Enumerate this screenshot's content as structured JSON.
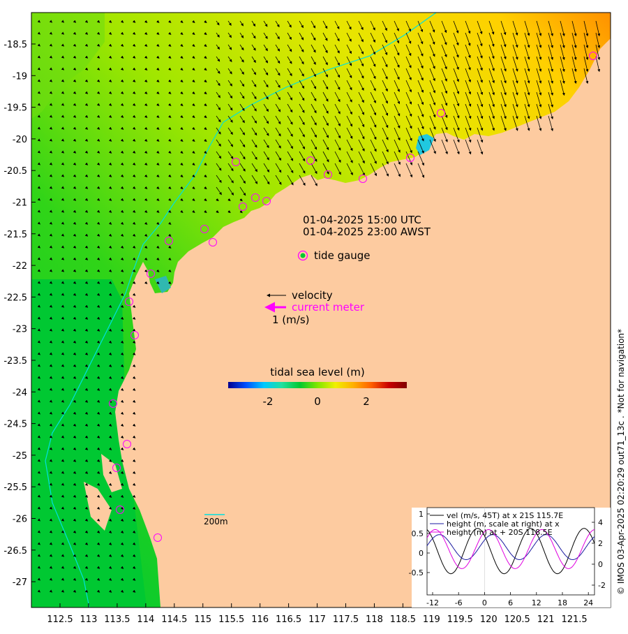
{
  "timestamps": {
    "utc": "01-04-2025 15:00 UTC",
    "local": "01-04-2025 23:00 AWST"
  },
  "legend": {
    "tide_gauge": "tide gauge",
    "velocity": "velocity",
    "current_meter": "current meter",
    "speed_scale": "1 (m/s)"
  },
  "colorbar": {
    "title": "tidal sea level (m)",
    "ticks": [
      "-2",
      "0",
      "2"
    ],
    "colors": [
      "#00008f",
      "#0050ff",
      "#00c8ff",
      "#20e0a0",
      "#00c832",
      "#80e600",
      "#f0f000",
      "#ffb000",
      "#ff6000",
      "#c80000",
      "#800000"
    ]
  },
  "scale_bar": {
    "label": "200m"
  },
  "axes": {
    "x_ticks": [
      "112.5",
      "113",
      "113.5",
      "114",
      "114.5",
      "115",
      "115.5",
      "116",
      "116.5",
      "117",
      "117.5",
      "118",
      "118.5",
      "119",
      "119.5",
      "120",
      "120.5",
      "121",
      "121.5"
    ],
    "y_ticks": [
      "-18.5",
      "-19",
      "-19.5",
      "-20",
      "-20.5",
      "-21",
      "-21.5",
      "-22",
      "-22.5",
      "-23",
      "-23.5",
      "-24",
      "-24.5",
      "-25",
      "-25.5",
      "-26",
      "-26.5",
      "-27"
    ]
  },
  "inset": {
    "legend": [
      "vel (m/s, 45T) at x 21S 115.7E",
      "height (m, scale at right) at x",
      "height (m) at + 20S 118.5E"
    ],
    "left_ticks": [
      "1",
      "0.5",
      "0",
      "-0.5"
    ],
    "right_ticks": [
      "4",
      "2",
      "0",
      "-2"
    ],
    "x_ticks": [
      "-12",
      "-6",
      "0",
      "6",
      "12",
      "18",
      "24"
    ],
    "series_colors": [
      "#000000",
      "#1a1aa0",
      "#e000e0"
    ]
  },
  "side_text": "© IMOS 03-Apr-2025 02:20:29 out71_13c . *Not for navigation*"
}
